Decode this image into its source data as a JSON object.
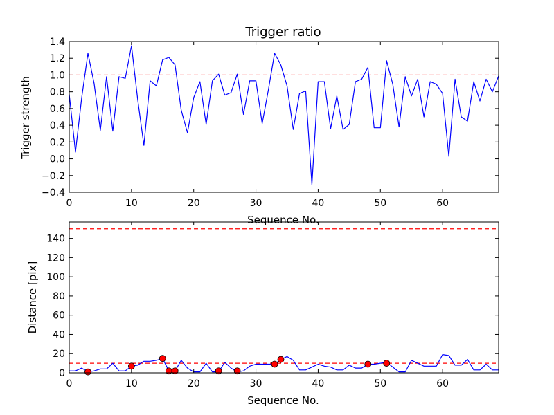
{
  "chart_data": [
    {
      "type": "line",
      "title": "Trigger ratio",
      "xlabel": "Sequence No.",
      "ylabel": "Trigger strength",
      "xlim": [
        0,
        69
      ],
      "ylim": [
        -0.4,
        1.4
      ],
      "xticks": [
        0,
        10,
        20,
        30,
        40,
        50,
        60
      ],
      "yticks": [
        -0.4,
        -0.2,
        0.0,
        0.2,
        0.4,
        0.6,
        0.8,
        1.0,
        1.2,
        1.4
      ],
      "ytick_labels": [
        "−0.4",
        "−0.2",
        "0.0",
        "0.2",
        "0.4",
        "0.6",
        "0.8",
        "1.0",
        "1.2",
        "1.4"
      ],
      "series": [
        {
          "name": "trigger strength",
          "color": "#0000ff",
          "x": [
            0,
            1,
            2,
            3,
            4,
            5,
            6,
            7,
            8,
            9,
            10,
            11,
            12,
            13,
            14,
            15,
            16,
            17,
            18,
            19,
            20,
            21,
            22,
            23,
            24,
            25,
            26,
            27,
            28,
            29,
            30,
            31,
            32,
            33,
            34,
            35,
            36,
            37,
            38,
            39,
            40,
            41,
            42,
            43,
            44,
            45,
            46,
            47,
            48,
            49,
            50,
            51,
            52,
            53,
            54,
            55,
            56,
            57,
            58,
            59,
            60,
            61,
            62,
            63,
            64,
            65,
            66,
            67,
            68,
            69
          ],
          "values": [
            0.77,
            0.08,
            0.73,
            1.26,
            0.9,
            0.34,
            0.98,
            0.33,
            0.98,
            0.96,
            1.35,
            0.71,
            0.16,
            0.93,
            0.87,
            1.18,
            1.21,
            1.12,
            0.58,
            0.31,
            0.73,
            0.92,
            0.41,
            0.93,
            1.01,
            0.76,
            0.79,
            1.01,
            0.53,
            0.93,
            0.93,
            0.42,
            0.82,
            1.26,
            1.12,
            0.87,
            0.35,
            0.78,
            0.81,
            -0.31,
            0.92,
            0.92,
            0.36,
            0.75,
            0.35,
            0.41,
            0.92,
            0.95,
            1.09,
            0.37,
            0.37,
            1.17,
            0.89,
            0.38,
            0.98,
            0.75,
            0.95,
            0.5,
            0.92,
            0.89,
            0.78,
            0.03,
            0.95,
            0.5,
            0.45,
            0.92,
            0.69,
            0.95,
            0.8,
            0.99
          ]
        }
      ],
      "threshold": {
        "value": 1.0,
        "color": "#ff0000",
        "style": "dashed"
      }
    },
    {
      "type": "line",
      "title": "",
      "xlabel": "Sequence No.",
      "ylabel": "Distance [pix]",
      "xlim": [
        0,
        69
      ],
      "ylim": [
        0,
        157
      ],
      "xticks": [
        0,
        10,
        20,
        30,
        40,
        50,
        60
      ],
      "yticks": [
        0,
        20,
        40,
        60,
        80,
        100,
        120,
        140
      ],
      "ytick_labels": [
        "0",
        "20",
        "40",
        "60",
        "80",
        "100",
        "120",
        "140"
      ],
      "series": [
        {
          "name": "distance",
          "color": "#0000ff",
          "x": [
            0,
            1,
            2,
            3,
            4,
            5,
            6,
            7,
            8,
            9,
            10,
            11,
            12,
            13,
            14,
            15,
            16,
            17,
            18,
            19,
            20,
            21,
            22,
            23,
            24,
            25,
            26,
            27,
            28,
            29,
            30,
            31,
            32,
            33,
            34,
            35,
            36,
            37,
            38,
            39,
            40,
            41,
            42,
            43,
            44,
            45,
            46,
            47,
            48,
            49,
            50,
            51,
            52,
            53,
            54,
            55,
            56,
            57,
            58,
            59,
            60,
            61,
            62,
            63,
            64,
            65,
            66,
            67,
            68,
            69
          ],
          "values": [
            2,
            2,
            5,
            1,
            2,
            4,
            4,
            10,
            2,
            2,
            7,
            8,
            12,
            12,
            13,
            15,
            2,
            2,
            13,
            5,
            1,
            1,
            10,
            1,
            1,
            11,
            5,
            1,
            2,
            7,
            9,
            9,
            9,
            9,
            14,
            17,
            13,
            3,
            3,
            6,
            9,
            7,
            6,
            3,
            3,
            8,
            5,
            5,
            9,
            9,
            10,
            11,
            6,
            1,
            1,
            13,
            10,
            7,
            7,
            7,
            19,
            18,
            8,
            8,
            14,
            3,
            3,
            9,
            3,
            3
          ]
        },
        {
          "name": "markers",
          "type": "scatter",
          "color": "#ff0000",
          "x": [
            3,
            10,
            15,
            16,
            17,
            24,
            27,
            33,
            34,
            48,
            51
          ],
          "values": [
            1,
            7,
            15,
            2,
            2,
            2,
            2,
            9,
            14,
            9,
            10
          ]
        }
      ],
      "thresholds": [
        {
          "value": 150,
          "color": "#ff0000",
          "style": "dashed"
        },
        {
          "value": 10,
          "color": "#ff0000",
          "style": "dashed"
        }
      ]
    }
  ]
}
